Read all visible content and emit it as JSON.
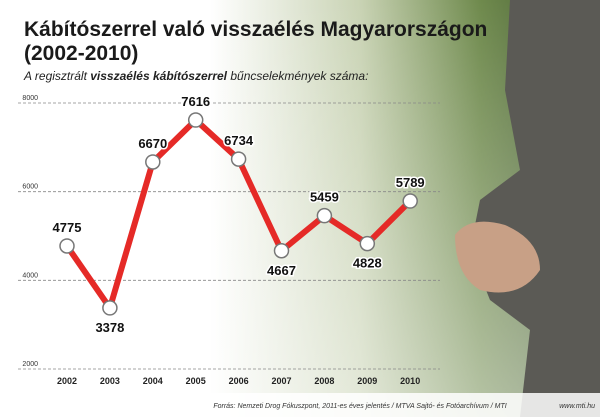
{
  "chart_data": {
    "type": "line",
    "title": [
      "Kábítószerrel való visszaélés Magyarországon",
      "(2002-2010)"
    ],
    "subtitle": [
      "A regisztrált ",
      "visszaélés kábítószerrel",
      " bűncselekmények száma:"
    ],
    "categories": [
      "2002",
      "2003",
      "2004",
      "2005",
      "2006",
      "2007",
      "2008",
      "2009",
      "2010"
    ],
    "values": [
      4775,
      3378,
      6670,
      7616,
      6734,
      4667,
      5459,
      4828,
      5789
    ],
    "color": "#e52a27",
    "ylim": [
      2000,
      8000
    ],
    "yticks": [
      2000,
      4000,
      6000,
      8000
    ],
    "grid": true,
    "source": "Forrás: Nemzeti Drog Fókuszpont, 2011-es éves jelentés / MTVA Sajtó- és Fotóarchívum / MTI",
    "website": "www.mti.hu"
  }
}
